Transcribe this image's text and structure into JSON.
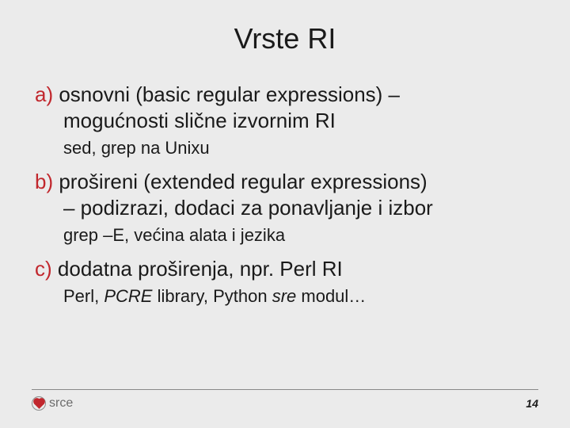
{
  "title": "Vrste RI",
  "items": [
    {
      "marker": "a)",
      "line1": " osnovni (basic regular expressions) –",
      "line2": "mogućnosti slične izvornim RI",
      "sub_plain": "sed, grep na Unixu",
      "sub_italic": ""
    },
    {
      "marker": "b)",
      "line1": " prošireni (extended regular expressions)",
      "line2": "– podizrazi, dodaci za ponavljanje i izbor",
      "sub_plain": "grep –E, većina alata i jezika",
      "sub_italic": ""
    },
    {
      "marker": "c)",
      "line1": " dodatna proširenja, npr. Perl RI",
      "line2": "",
      "sub_html": "Perl, <span class=\"italic\">PCRE</span> library, Python <span class=\"italic\">sre</span> modul…"
    }
  ],
  "logo_text": "srce",
  "page_number": "14",
  "colors": {
    "background": "#ebebeb",
    "marker": "#c1272d",
    "text": "#1a1a1a",
    "logo_gray": "#6b6b6b",
    "rule": "#888888"
  },
  "fontsize": {
    "title": 36,
    "main": 26,
    "sub": 22,
    "logo": 16,
    "pagenum": 14
  }
}
